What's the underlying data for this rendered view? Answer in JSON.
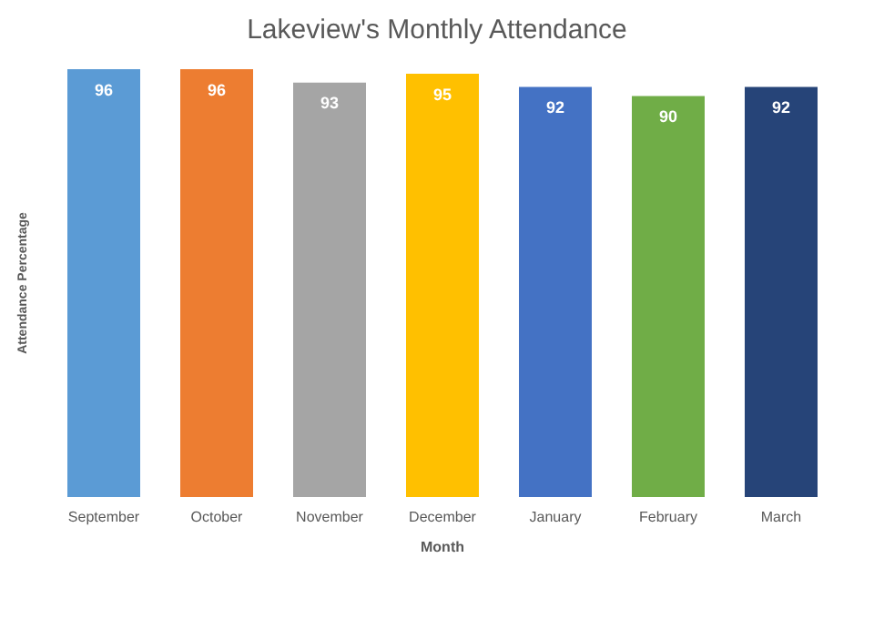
{
  "chart_data": {
    "type": "bar",
    "title": "Lakeview's Monthly Attendance",
    "xlabel": "Month",
    "ylabel": "Attendance Percentage",
    "categories": [
      "September",
      "October",
      "November",
      "December",
      "January",
      "February",
      "March"
    ],
    "values": [
      96,
      96,
      93,
      95,
      92,
      90,
      92
    ],
    "colors": [
      "#5b9bd5",
      "#ed7d31",
      "#a5a5a5",
      "#ffc000",
      "#4472c4",
      "#70ad47",
      "#264478"
    ],
    "data_labels": true,
    "grid": false,
    "legend": false
  }
}
